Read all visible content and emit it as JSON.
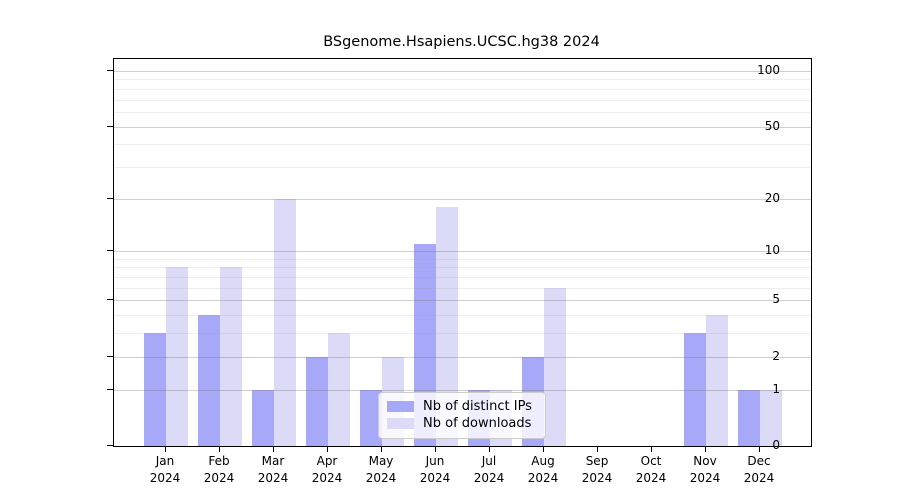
{
  "chart_data": {
    "type": "bar",
    "title": "BSgenome.Hsapiens.UCSC.hg38 2024",
    "categories": [
      "Jan",
      "Feb",
      "Mar",
      "Apr",
      "May",
      "Jun",
      "Jul",
      "Aug",
      "Sep",
      "Oct",
      "Nov",
      "Dec"
    ],
    "year_label": "2024",
    "series": [
      {
        "name": "Nb of distinct IPs",
        "color": "#a8a8f8",
        "values": [
          3,
          4,
          1,
          2,
          1,
          11,
          1,
          2,
          0,
          0,
          3,
          1
        ]
      },
      {
        "name": "Nb of downloads",
        "color": "#dbdbf8",
        "values": [
          8,
          8,
          20,
          3,
          2,
          18,
          1,
          6,
          0,
          0,
          4,
          1
        ]
      }
    ],
    "yscale": "log1p",
    "ylim": [
      0,
      100
    ],
    "yticks": [
      0,
      1,
      2,
      5,
      10,
      20,
      50,
      100
    ],
    "minor_gridlines": [
      3,
      4,
      6,
      7,
      8,
      9,
      30,
      40,
      60,
      70,
      80,
      90
    ],
    "xlabel": "",
    "ylabel": "",
    "grid": "horizontal",
    "legend_position": "inside-bottom-center"
  }
}
